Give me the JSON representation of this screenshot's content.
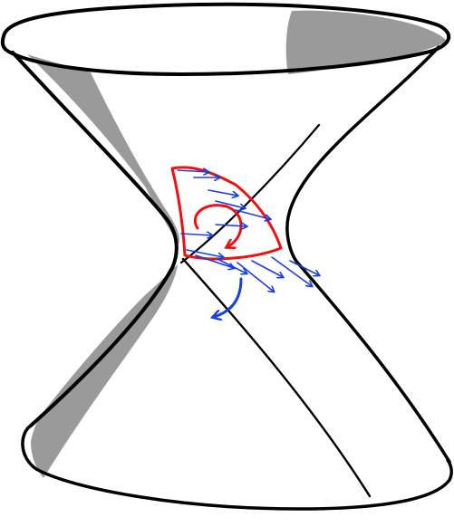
{
  "colors": {
    "outline": "#000000",
    "shading": "#9a9a9a",
    "surface": "#ffffff",
    "triangle": "#ee1111",
    "vectors": "#1a3fe0"
  },
  "icons": {
    "rotation_marker": "curved-arrow-icon",
    "flow_vectors": "arrow-icon"
  }
}
